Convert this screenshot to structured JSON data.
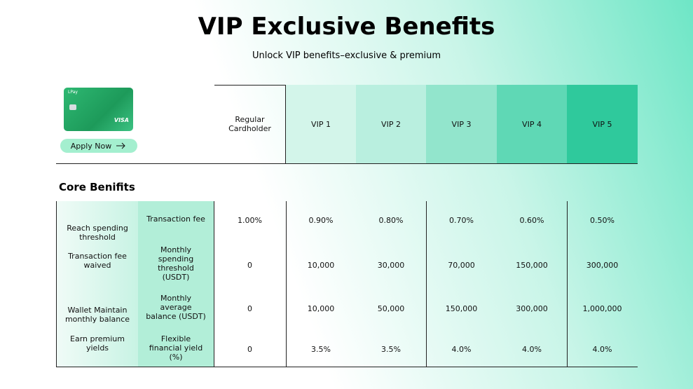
{
  "header": {
    "title": "VIP Exclusive Benefits",
    "subtitle": "Unlock VIP benefits–exclusive & premium"
  },
  "card": {
    "brand": "LPay",
    "network": "VISA",
    "button": "Apply Now"
  },
  "table": {
    "columns": [
      "Regular Cardholder",
      "VIP 1",
      "VIP 2",
      "VIP 3",
      "VIP 4",
      "VIP 5"
    ],
    "section": "Core Benifits",
    "rows": [
      {
        "group": "Reach spending threshold",
        "metric": "Transaction fee",
        "values": [
          "1.00%",
          "0.90%",
          "0.80%",
          "0.70%",
          "0.60%",
          "0.50%"
        ]
      },
      {
        "group": "Transaction fee waived",
        "metric": "Monthly spending threshold (USDT)",
        "values": [
          "0",
          "10,000",
          "30,000",
          "70,000",
          "150,000",
          "300,000"
        ]
      },
      {
        "group": "Wallet Maintain monthly balance",
        "metric": "Monthly average balance (USDT)",
        "values": [
          "0",
          "10,000",
          "50,000",
          "150,000",
          "300,000",
          "1,000,000"
        ]
      },
      {
        "group": "Earn premium yields",
        "metric": "Flexible financial yield (%)",
        "values": [
          "0",
          "3.5%",
          "3.5%",
          "4.0%",
          "4.0%",
          "4.0%"
        ]
      }
    ]
  }
}
